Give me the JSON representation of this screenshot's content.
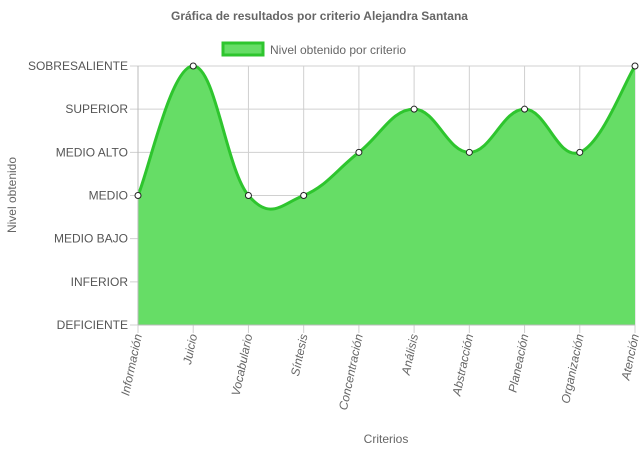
{
  "chart_data": {
    "type": "area",
    "title": "Gráfica de resultados por criterio Alejandra Santana",
    "xlabel": "Criterios",
    "ylabel": "Nivel obtenido",
    "y_levels": [
      "DEFICIENTE",
      "INFERIOR",
      "MEDIO BAJO",
      "MEDIO",
      "MEDIO ALTO",
      "SUPERIOR",
      "SOBRESALIENTE"
    ],
    "categories": [
      "Información",
      "Juicio",
      "Vocabulario",
      "Síntesis",
      "Concentración",
      "Análisis",
      "Abstracción",
      "Planeación",
      "Organización",
      "Atención"
    ],
    "series": [
      {
        "name": "Nivel obtenido por criterio",
        "values": [
          "MEDIO",
          "SOBRESALIENTE",
          "MEDIO",
          "MEDIO",
          "MEDIO ALTO",
          "SUPERIOR",
          "MEDIO ALTO",
          "SUPERIOR",
          "MEDIO ALTO",
          "SOBRESALIENTE"
        ]
      }
    ],
    "legend_position": "top",
    "grid": true,
    "colors": {
      "fill": "#66dd66",
      "line": "#2ec52e",
      "grid": "#d0d0d0"
    }
  }
}
